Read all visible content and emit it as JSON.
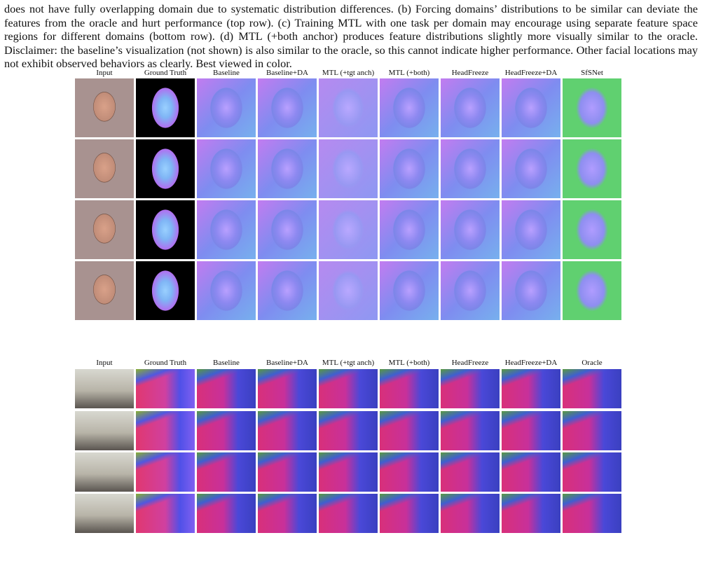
{
  "caption": {
    "text": "does not have fully overlapping domain due to systematic distribution differences. (b) Forcing domains’ distributions to be similar can deviate the features from the oracle and hurt performance (top row). (c) Training MTL with one task per domain may encourage using separate feature space regions for different domains (bottom row). (d) MTL (+both anchor) produces feature distributions slightly more visually similar to the oracle. Disclaimer: the baseline’s visualization (not shown) is also similar to the oracle, so this cannot indicate higher performance. Other facial locations may not exhibit observed behaviors as clearly. Best viewed in color."
  },
  "faces_figure": {
    "columns": [
      "Input",
      "Ground Truth",
      "Baseline",
      "Baseline+DA",
      "MTL (+tgt anch)",
      "MTL (+both)",
      "HeadFreeze",
      "HeadFreeze+DA",
      "SfSNet"
    ]
  },
  "scenes_figure": {
    "columns": [
      "Input",
      "Ground Truth",
      "Baseline",
      "Baseline+DA",
      "MTL (+tgt anch)",
      "MTL (+both)",
      "HeadFreeze",
      "HeadFreeze+DA",
      "Oracle"
    ]
  }
}
